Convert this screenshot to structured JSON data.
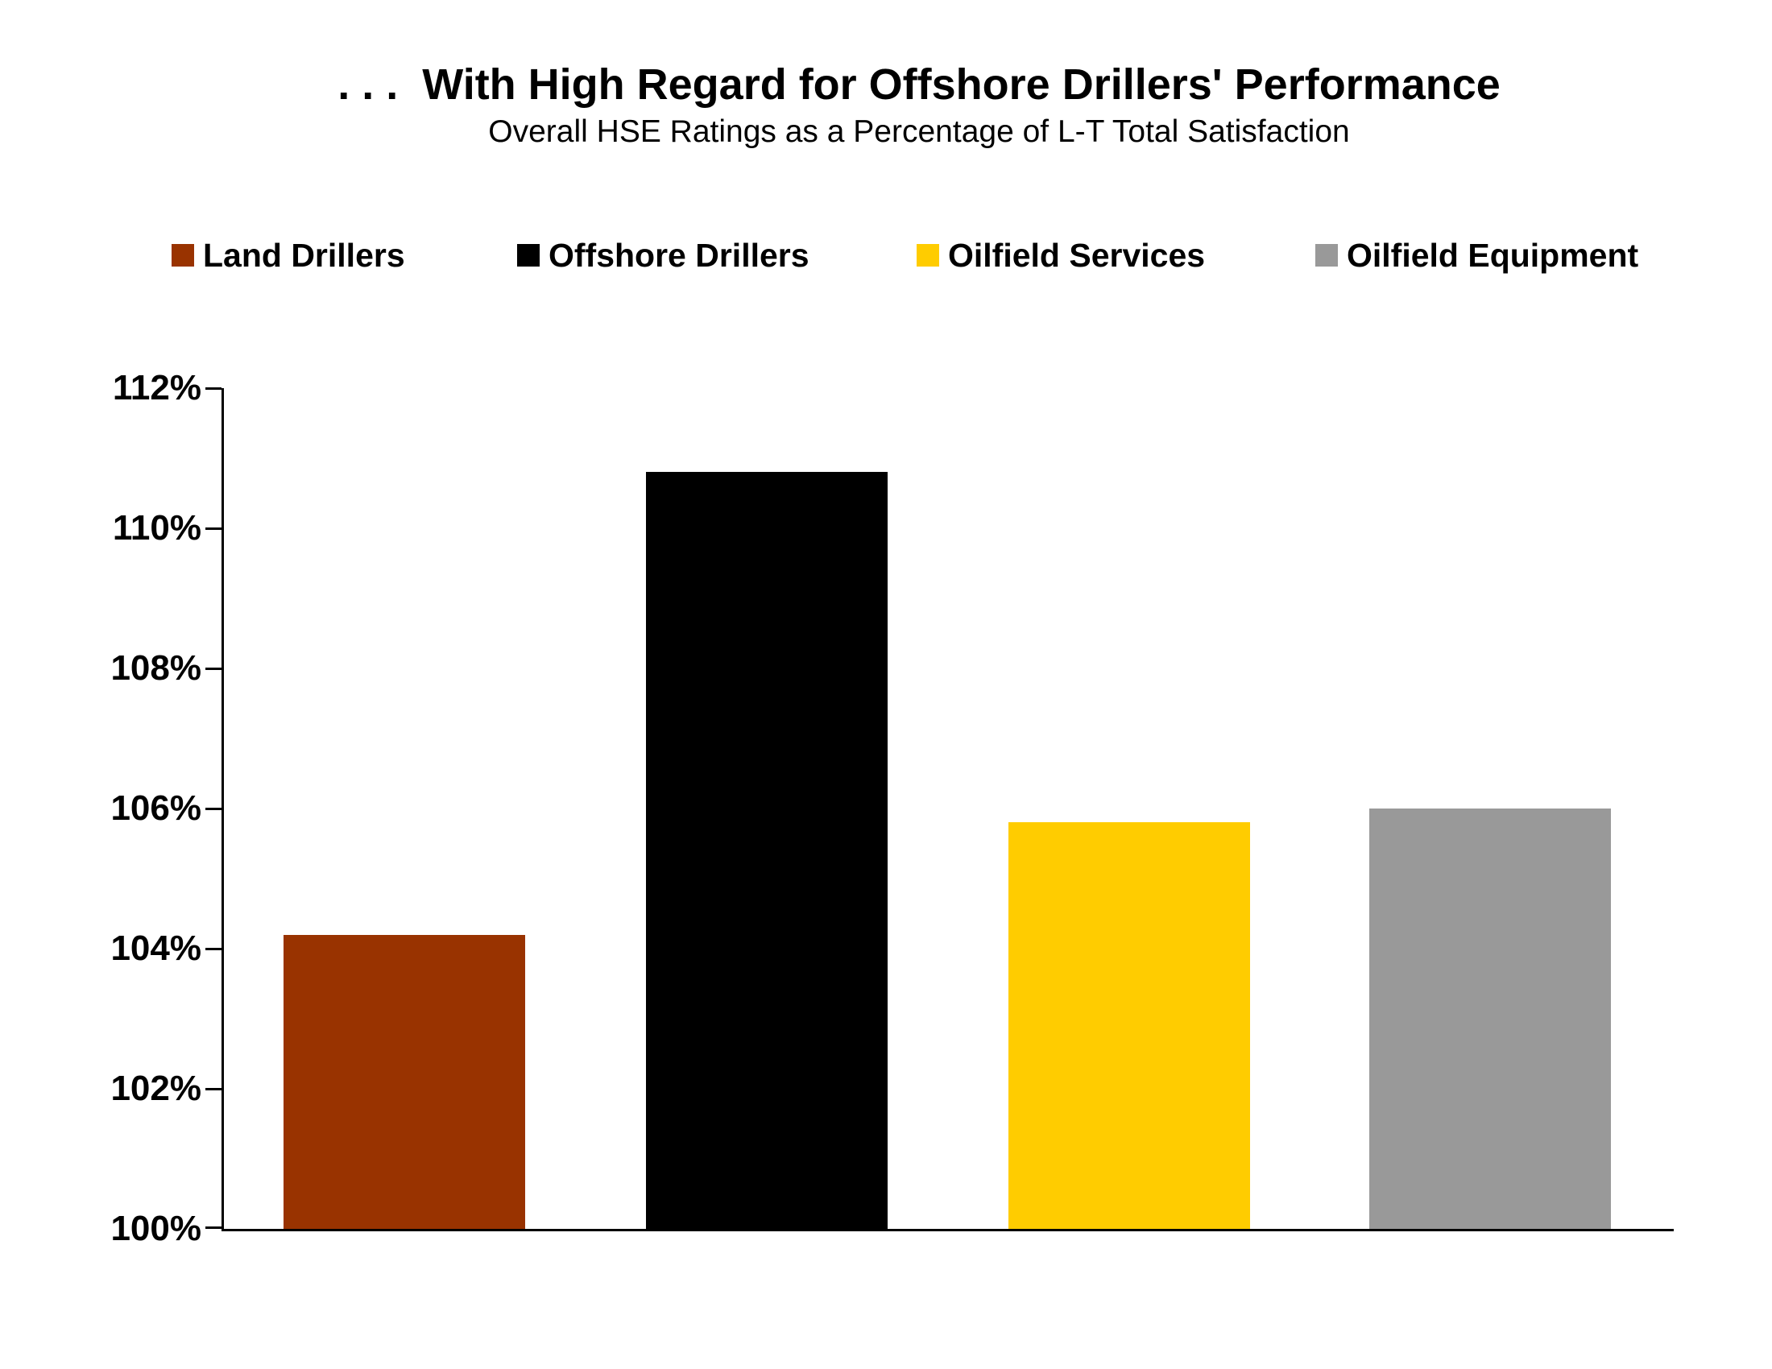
{
  "header": {
    "title": ". . .  With High Regard for Offshore Drillers' Performance",
    "subtitle": "Overall HSE Ratings as a Percentage of L-T Total Satisfaction"
  },
  "legend": {
    "items": [
      {
        "label": "Land Drillers",
        "color": "#993300"
      },
      {
        "label": "Offshore Drillers",
        "color": "#000000"
      },
      {
        "label": "Oilfield Services",
        "color": "#FFCC00"
      },
      {
        "label": "Oilfield Equipment",
        "color": "#999999"
      }
    ]
  },
  "chart_data": {
    "type": "bar",
    "title": ". . .  With High Regard for Offshore Drillers' Performance",
    "subtitle": "Overall HSE Ratings as a Percentage of L-T Total Satisfaction",
    "categories": [
      "Land Drillers",
      "Offshore Drillers",
      "Oilfield Services",
      "Oilfield Equipment"
    ],
    "values": [
      104.2,
      110.8,
      105.8,
      106.0
    ],
    "unit": "%",
    "colors": [
      "#993300",
      "#000000",
      "#FFCC00",
      "#999999"
    ],
    "xlabel": "",
    "ylabel": "",
    "ylim": [
      100,
      112
    ],
    "ytick_step": 2,
    "ytick_labels": [
      "112%",
      "110%",
      "108%",
      "106%",
      "104%",
      "102%",
      "100%"
    ],
    "grid": false,
    "legend_position": "top",
    "x_axis_labels_shown": false
  }
}
